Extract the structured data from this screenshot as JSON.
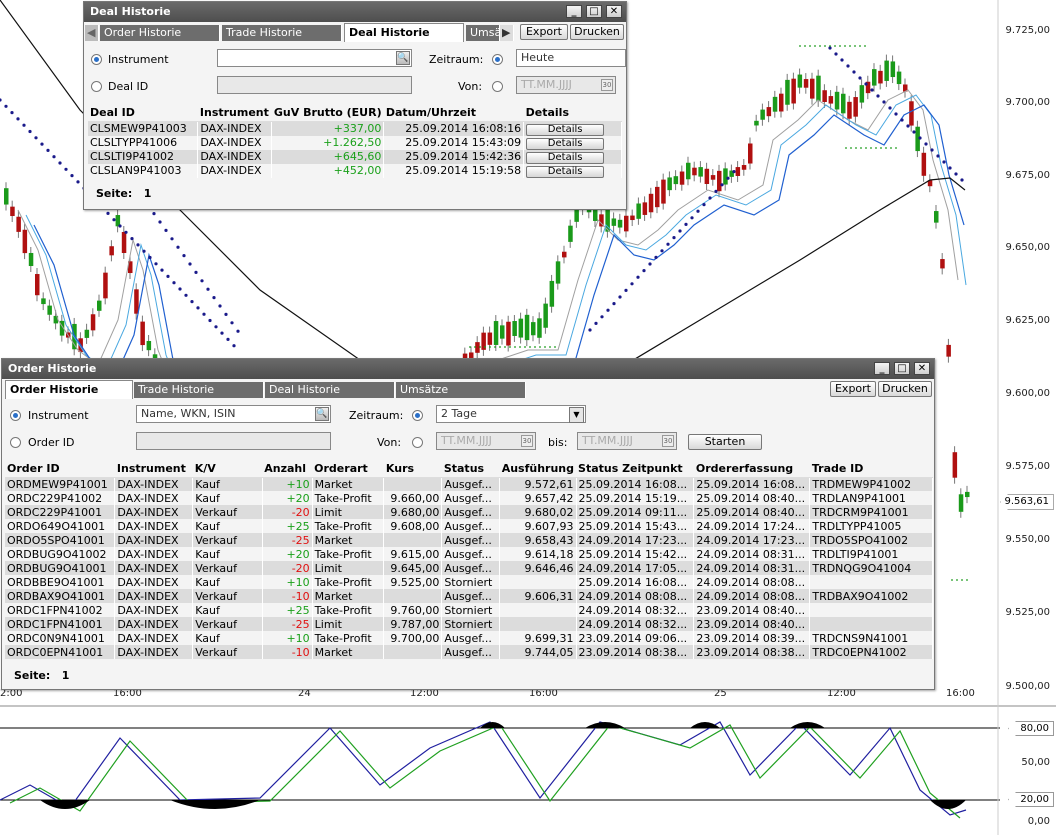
{
  "chart": {
    "price_axis": [
      "9.725,00",
      "9.700,00",
      "9.675,00",
      "9.650,00",
      "9.625,00",
      "9.600,00",
      "9.575,00",
      "9.550,00",
      "9.525,00",
      "9.500,00"
    ],
    "current_price": "9.563,61",
    "time_axis": [
      "2:00",
      "16:00",
      "24",
      "12:00",
      "16:00",
      "25",
      "12:00",
      "16:00"
    ],
    "osc_levels": [
      "80,00",
      "50,00",
      "20,00",
      "0,00"
    ],
    "colors": {
      "bull": "#1a9a1a",
      "bear": "#b01010",
      "psar": "#1a1a8a",
      "ma_black": "#111111",
      "ma_blue": "#2060d0",
      "ma_light": "#4aa8e0",
      "ma_gray": "#a0a0a0",
      "osc_blue": "#2020a0",
      "osc_green": "#20a020"
    }
  },
  "deal_window": {
    "title": "Deal Historie",
    "tabs": [
      "Order Historie",
      "Trade Historie",
      "Deal Historie",
      "Umsä"
    ],
    "export": "Export",
    "print": "Drucken",
    "radio_instrument": "Instrument",
    "radio_deal_id": "Deal ID",
    "zeitraum_label": "Zeitraum:",
    "zeitraum_value": "Heute",
    "von_label": "Von:",
    "date_placeholder": "TT.MM.JJJJ",
    "columns": [
      "Deal ID",
      "Instrument",
      "GuV Brutto (EUR)",
      "Datum/Uhrzeit",
      "Details"
    ],
    "rows": [
      {
        "id": "CLSMEW9P41003",
        "instrument": "DAX-INDEX",
        "guv": "+337,00",
        "datum": "25.09.2014 16:08:16",
        "details": "Details"
      },
      {
        "id": "CLSLTYPP41006",
        "instrument": "DAX-INDEX",
        "guv": "+1.262,50",
        "datum": "25.09.2014 15:43:09",
        "details": "Details"
      },
      {
        "id": "CLSLTI9P41002",
        "instrument": "DAX-INDEX",
        "guv": "+645,60",
        "datum": "25.09.2014 15:42:36",
        "details": "Details"
      },
      {
        "id": "CLSLAN9P41003",
        "instrument": "DAX-INDEX",
        "guv": "+452,00",
        "datum": "25.09.2014 15:19:58",
        "details": "Details"
      }
    ],
    "seite_label": "Seite:",
    "seite_value": "1"
  },
  "order_window": {
    "title": "Order Historie",
    "tabs": [
      "Order Historie",
      "Trade Historie",
      "Deal Historie",
      "Umsätze"
    ],
    "export": "Export",
    "print": "Drucken",
    "radio_instrument": "Instrument",
    "radio_order_id": "Order ID",
    "search_placeholder": "Name, WKN, ISIN",
    "zeitraum_label": "Zeitraum:",
    "zeitraum_value": "2 Tage",
    "von_label": "Von:",
    "bis_label": "bis:",
    "date_placeholder": "TT.MM.JJJJ",
    "start_button": "Starten",
    "columns": [
      "Order ID",
      "Instrument",
      "K/V",
      "Anzahl",
      "Orderart",
      "Kurs",
      "Status",
      "Ausführung",
      "Status Zeitpunkt",
      "Ordererfassung",
      "Trade ID"
    ],
    "rows": [
      {
        "id": "ORDMEW9P41001",
        "inst": "DAX-INDEX",
        "kv": "Kauf",
        "anz": "+10",
        "art": "Market",
        "kurs": "",
        "status": "Ausgef...",
        "ausf": "9.572,61",
        "szeit": "25.09.2014 16:08...",
        "erf": "25.09.2014 16:08...",
        "trade": "TRDMEW9P41002"
      },
      {
        "id": "ORDC229P41002",
        "inst": "DAX-INDEX",
        "kv": "Kauf",
        "anz": "+20",
        "art": "Take-Profit",
        "kurs": "9.660,00",
        "status": "Ausgef...",
        "ausf": "9.657,42",
        "szeit": "25.09.2014 15:19...",
        "erf": "25.09.2014 08:40...",
        "trade": "TRDLAN9P41001"
      },
      {
        "id": "ORDC229P41001",
        "inst": "DAX-INDEX",
        "kv": "Verkauf",
        "anz": "-20",
        "art": "Limit",
        "kurs": "9.680,00",
        "status": "Ausgef...",
        "ausf": "9.680,02",
        "szeit": "25.09.2014 09:11...",
        "erf": "25.09.2014 08:40...",
        "trade": "TRDCRM9P41001"
      },
      {
        "id": "ORDO649O41001",
        "inst": "DAX-INDEX",
        "kv": "Kauf",
        "anz": "+25",
        "art": "Take-Profit",
        "kurs": "9.608,00",
        "status": "Ausgef...",
        "ausf": "9.607,93",
        "szeit": "25.09.2014 15:43...",
        "erf": "24.09.2014 17:24...",
        "trade": "TRDLTYPP41005"
      },
      {
        "id": "ORDO5SPO41001",
        "inst": "DAX-INDEX",
        "kv": "Verkauf",
        "anz": "-25",
        "art": "Market",
        "kurs": "",
        "status": "Ausgef...",
        "ausf": "9.658,43",
        "szeit": "24.09.2014 17:23...",
        "erf": "24.09.2014 17:23...",
        "trade": "TRDO5SPO41002"
      },
      {
        "id": "ORDBUG9O41002",
        "inst": "DAX-INDEX",
        "kv": "Kauf",
        "anz": "+20",
        "art": "Take-Profit",
        "kurs": "9.615,00",
        "status": "Ausgef...",
        "ausf": "9.614,18",
        "szeit": "25.09.2014 15:42...",
        "erf": "24.09.2014 08:31...",
        "trade": "TRDLTI9P41001"
      },
      {
        "id": "ORDBUG9O41001",
        "inst": "DAX-INDEX",
        "kv": "Verkauf",
        "anz": "-20",
        "art": "Limit",
        "kurs": "9.645,00",
        "status": "Ausgef...",
        "ausf": "9.646,46",
        "szeit": "24.09.2014 17:05...",
        "erf": "24.09.2014 08:31...",
        "trade": "TRDNQG9O41004"
      },
      {
        "id": "ORDBBE9O41001",
        "inst": "DAX-INDEX",
        "kv": "Kauf",
        "anz": "+10",
        "art": "Take-Profit",
        "kurs": "9.525,00",
        "status": "Storniert",
        "ausf": "",
        "szeit": "25.09.2014 16:08...",
        "erf": "24.09.2014 08:08...",
        "trade": ""
      },
      {
        "id": "ORDBAX9O41001",
        "inst": "DAX-INDEX",
        "kv": "Verkauf",
        "anz": "-10",
        "art": "Market",
        "kurs": "",
        "status": "Ausgef...",
        "ausf": "9.606,31",
        "szeit": "24.09.2014 08:08...",
        "erf": "24.09.2014 08:08...",
        "trade": "TRDBAX9O41002"
      },
      {
        "id": "ORDC1FPN41002",
        "inst": "DAX-INDEX",
        "kv": "Kauf",
        "anz": "+25",
        "art": "Take-Profit",
        "kurs": "9.760,00",
        "status": "Storniert",
        "ausf": "",
        "szeit": "24.09.2014 08:32...",
        "erf": "23.09.2014 08:40...",
        "trade": ""
      },
      {
        "id": "ORDC1FPN41001",
        "inst": "DAX-INDEX",
        "kv": "Verkauf",
        "anz": "-25",
        "art": "Limit",
        "kurs": "9.787,00",
        "status": "Storniert",
        "ausf": "",
        "szeit": "24.09.2014 08:32...",
        "erf": "23.09.2014 08:40...",
        "trade": ""
      },
      {
        "id": "ORDC0N9N41001",
        "inst": "DAX-INDEX",
        "kv": "Kauf",
        "anz": "+10",
        "art": "Take-Profit",
        "kurs": "9.700,00",
        "status": "Ausgef...",
        "ausf": "9.699,31",
        "szeit": "23.09.2014 09:06...",
        "erf": "23.09.2014 08:39...",
        "trade": "TRDCNS9N41001"
      },
      {
        "id": "ORDC0EPN41001",
        "inst": "DAX-INDEX",
        "kv": "Verkauf",
        "anz": "-10",
        "art": "Market",
        "kurs": "",
        "status": "Ausgef...",
        "ausf": "9.744,05",
        "szeit": "23.09.2014 08:38...",
        "erf": "23.09.2014 08:38...",
        "trade": "TRDC0EPN41002"
      }
    ],
    "seite_label": "Seite:",
    "seite_value": "1"
  }
}
